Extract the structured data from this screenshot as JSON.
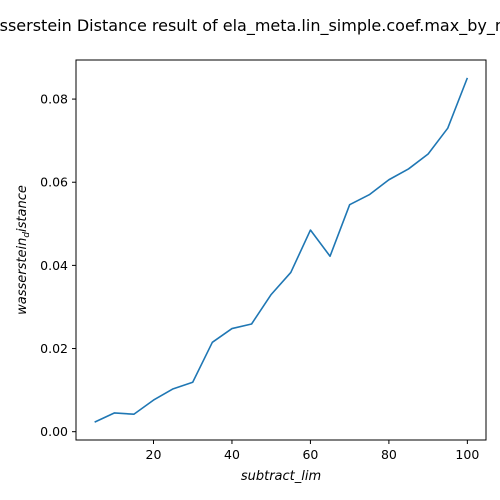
{
  "chart_data": {
    "type": "line",
    "title": "Wasserstein Distance result of ela_meta.lin_simple.coef.max_by_min",
    "xlabel": "subtract_lim",
    "ylabel_main": "wasserstein",
    "ylabel_sub": "d",
    "ylabel_rest": "istance",
    "xlim": [
      0.25,
      104.75
    ],
    "ylim": [
      -0.002,
      0.0894
    ],
    "xticks": [
      20,
      40,
      60,
      80,
      100
    ],
    "xtick_labels": [
      "20",
      "40",
      "60",
      "80",
      "100"
    ],
    "yticks": [
      0.0,
      0.02,
      0.04,
      0.06,
      0.08
    ],
    "ytick_labels": [
      "0.00",
      "0.02",
      "0.04",
      "0.06",
      "0.08"
    ],
    "grid": false,
    "line_color": "#1f77b4",
    "x": [
      5,
      10,
      15,
      20,
      25,
      30,
      35,
      40,
      45,
      50,
      55,
      60,
      65,
      70,
      75,
      80,
      85,
      90,
      95,
      100
    ],
    "series": [
      {
        "values": [
          0.0023,
          0.0045,
          0.0042,
          0.0076,
          0.0103,
          0.0119,
          0.0215,
          0.0248,
          0.0259,
          0.033,
          0.0383,
          0.0485,
          0.0422,
          0.0546,
          0.057,
          0.0606,
          0.0632,
          0.0668,
          0.073,
          0.0851
        ]
      }
    ]
  }
}
